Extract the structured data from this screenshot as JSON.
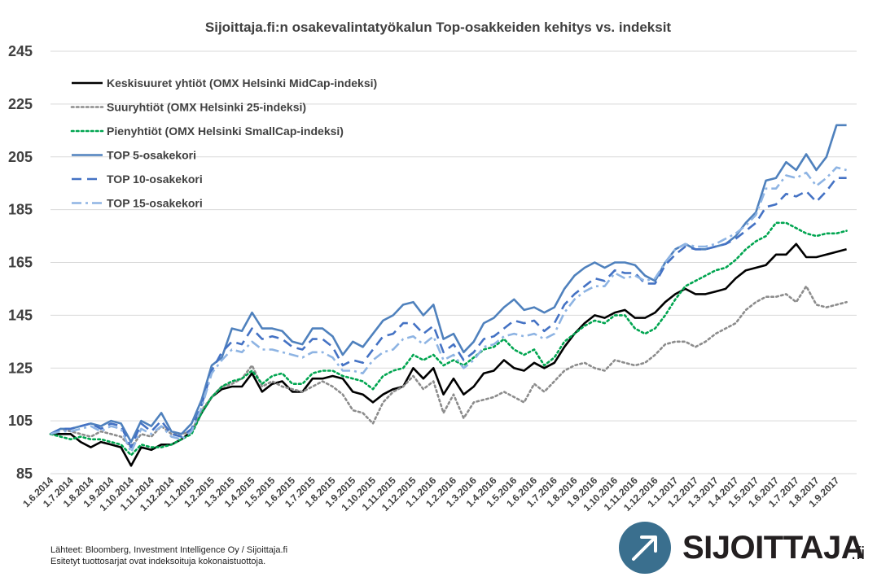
{
  "chart_data": {
    "type": "line",
    "title": "Sijoittaja.fi:n osakevalintatyökalun Top-osakkeiden kehitys vs. indeksit",
    "xlabel": "",
    "ylabel": "",
    "ylim": [
      85,
      245
    ],
    "yticks": [
      85,
      105,
      125,
      145,
      165,
      185,
      205,
      225,
      245
    ],
    "grid": "horizontal",
    "legend_position": "top-left",
    "xtick_labels": [
      "1.6.2014",
      "1.7.2014",
      "1.8.2014",
      "1.9.2014",
      "1.10.2014",
      "1.11.2014",
      "1.12.2014",
      "1.1.2015",
      "1.2.2015",
      "1.3.2015",
      "1.4.2015",
      "1.5.2015",
      "1.6.2015",
      "1.7.2015",
      "1.8.2015",
      "1.9.2015",
      "1.10.2015",
      "1.11.2015",
      "1.12.2015",
      "1.1.2016",
      "1.2.2016",
      "1.3.2016",
      "1.4.2016",
      "1.5.2016",
      "1.6.2016",
      "1.7.2016",
      "1.8.2016",
      "1.9.2016",
      "1.10.2016",
      "1.11.2016",
      "1.12.2016",
      "1.1.2017",
      "1.2.2017",
      "1.3.2017",
      "1.4.2017",
      "1.5.2017",
      "1.6.2017",
      "1.7.2017",
      "1.8.2017",
      "1.9.2017"
    ],
    "points_per_month": 2,
    "series": [
      {
        "name": "Keskisuuret yhtiöt (OMX Helsinki MidCap-indeksi)",
        "color": "#000000",
        "dash": "solid",
        "values": [
          100,
          100,
          100,
          97,
          95,
          97,
          96,
          95,
          88,
          95,
          94,
          96,
          96,
          98,
          101,
          108,
          114,
          117,
          118,
          118,
          123,
          116,
          119,
          120,
          116,
          116,
          121,
          121,
          122,
          121,
          116,
          115,
          112,
          115,
          117,
          118,
          125,
          121,
          125,
          115,
          121,
          115,
          118,
          123,
          124,
          128,
          125,
          124,
          127,
          125,
          127,
          133,
          138,
          142,
          145,
          144,
          146,
          147,
          144,
          144,
          146,
          150,
          153,
          155,
          153,
          153,
          154,
          155,
          159,
          162,
          163,
          164,
          168,
          168,
          172,
          167,
          167,
          168,
          169,
          170
        ]
      },
      {
        "name": "Suuryhtiöt (OMX Helsinki 25-indeksi)",
        "color": "#8c8c8c",
        "dash": "dot",
        "values": [
          100,
          102,
          101,
          100,
          99,
          101,
          100,
          99,
          95,
          100,
          99,
          103,
          100,
          100,
          101,
          109,
          114,
          118,
          119,
          121,
          126,
          118,
          120,
          118,
          117,
          116,
          118,
          120,
          118,
          115,
          109,
          108,
          104,
          112,
          116,
          118,
          122,
          117,
          120,
          108,
          115,
          106,
          112,
          113,
          114,
          116,
          114,
          112,
          119,
          116,
          120,
          124,
          126,
          127,
          125,
          124,
          128,
          127,
          126,
          127,
          130,
          134,
          135,
          135,
          133,
          135,
          138,
          140,
          142,
          147,
          150,
          152,
          152,
          153,
          150,
          156,
          149,
          148,
          149,
          150
        ]
      },
      {
        "name": "Pienyhtiöt (OMX Helsinki SmallCap-indeksi)",
        "color": "#00a550",
        "dash": "dot",
        "values": [
          100,
          99,
          98,
          99,
          98,
          98,
          97,
          96,
          92,
          96,
          95,
          95,
          96,
          98,
          100,
          108,
          114,
          118,
          120,
          121,
          124,
          119,
          122,
          123,
          119,
          119,
          123,
          124,
          124,
          122,
          121,
          120,
          117,
          122,
          124,
          125,
          130,
          128,
          130,
          126,
          128,
          126,
          129,
          132,
          133,
          136,
          132,
          130,
          132,
          126,
          129,
          135,
          138,
          141,
          143,
          142,
          145,
          145,
          140,
          138,
          140,
          145,
          151,
          156,
          158,
          160,
          162,
          163,
          166,
          170,
          173,
          175,
          180,
          180,
          178,
          176,
          175,
          176,
          176,
          177
        ]
      },
      {
        "name": "TOP 5-osakekori",
        "color": "#4f81bd",
        "dash": "solid",
        "values": [
          100,
          102,
          102,
          103,
          104,
          103,
          105,
          104,
          97,
          105,
          103,
          108,
          101,
          100,
          104,
          113,
          126,
          129,
          140,
          139,
          146,
          140,
          140,
          139,
          135,
          134,
          140,
          140,
          137,
          130,
          135,
          133,
          138,
          143,
          145,
          149,
          150,
          145,
          149,
          136,
          138,
          131,
          135,
          142,
          144,
          148,
          151,
          147,
          148,
          146,
          148,
          155,
          160,
          163,
          165,
          163,
          165,
          165,
          164,
          160,
          158,
          165,
          170,
          172,
          170,
          170,
          171,
          172,
          175,
          180,
          184,
          196,
          197,
          203,
          200,
          206,
          200,
          205,
          217,
          217
        ]
      },
      {
        "name": "TOP 10-osakekori",
        "color": "#4472c4",
        "dash": "dash",
        "values": [
          100,
          102,
          102,
          103,
          104,
          102,
          104,
          103,
          95,
          104,
          101,
          105,
          100,
          99,
          102,
          111,
          124,
          131,
          135,
          134,
          140,
          136,
          137,
          136,
          133,
          132,
          136,
          136,
          133,
          126,
          128,
          127,
          132,
          137,
          138,
          142,
          142,
          138,
          141,
          131,
          134,
          128,
          131,
          136,
          137,
          140,
          143,
          142,
          143,
          139,
          142,
          149,
          153,
          156,
          159,
          158,
          162,
          161,
          161,
          157,
          157,
          164,
          168,
          171,
          170,
          170,
          171,
          172,
          174,
          177,
          180,
          186,
          187,
          191,
          190,
          192,
          188,
          192,
          197,
          197
        ]
      },
      {
        "name": "TOP 15-osakekori",
        "color": "#8eb4e3",
        "dash": "dashdot",
        "values": [
          100,
          101,
          101,
          102,
          103,
          101,
          103,
          102,
          93,
          102,
          100,
          103,
          99,
          98,
          101,
          110,
          123,
          128,
          132,
          131,
          135,
          132,
          132,
          131,
          130,
          129,
          131,
          131,
          129,
          124,
          124,
          123,
          128,
          131,
          132,
          136,
          137,
          134,
          137,
          128,
          130,
          125,
          128,
          133,
          134,
          137,
          138,
          137,
          138,
          136,
          138,
          146,
          151,
          154,
          156,
          156,
          161,
          159,
          160,
          158,
          159,
          165,
          170,
          172,
          171,
          171,
          172,
          174,
          176,
          179,
          183,
          193,
          193,
          198,
          197,
          199,
          194,
          197,
          201,
          200
        ]
      }
    ]
  },
  "footer": {
    "source": "Lähteet: Bloomberg, Investment Intelligence Oy / Sijoittaja.fi",
    "note": "Esitetyt tuottosarjat ovat indeksoituja kokonaistuottoja."
  },
  "brand": {
    "name": "SIJOITTAJA",
    "tld": ".fi",
    "icon": "arrow-up-right-icon",
    "color": "#3a6f8e"
  }
}
